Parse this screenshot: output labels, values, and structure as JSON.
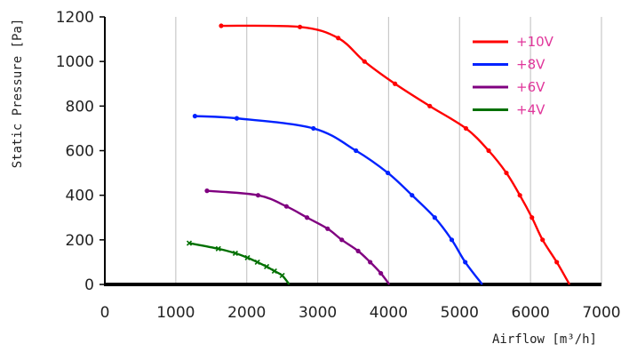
{
  "chart_data": {
    "type": "line",
    "title": "",
    "xlabel": "Airflow [m³/h]",
    "ylabel": "Static Pressure [Pa]",
    "xlim": [
      0,
      7000
    ],
    "ylim": [
      0,
      1200
    ],
    "x_ticks": [
      "0",
      "1000",
      "2000",
      "3000",
      "4000",
      "5000",
      "6000",
      "7000"
    ],
    "y_ticks": [
      "0",
      "200",
      "400",
      "600",
      "800",
      "1000",
      "1200"
    ],
    "grid": "vertical",
    "legend_position": "top-right",
    "series": [
      {
        "name": "+10V",
        "color": "#ff0000",
        "points": [
          [
            1640,
            1160
          ],
          [
            2750,
            1155
          ],
          [
            3290,
            1105
          ],
          [
            3660,
            1000
          ],
          [
            4090,
            900
          ],
          [
            4580,
            800
          ],
          [
            5090,
            700
          ],
          [
            5410,
            600
          ],
          [
            5660,
            500
          ],
          [
            5850,
            400
          ],
          [
            6020,
            300
          ],
          [
            6170,
            200
          ],
          [
            6370,
            100
          ],
          [
            6550,
            0
          ]
        ]
      },
      {
        "name": "+8V",
        "color": "#0022ff",
        "points": [
          [
            1270,
            755
          ],
          [
            1860,
            745
          ],
          [
            2940,
            700
          ],
          [
            3540,
            600
          ],
          [
            3990,
            500
          ],
          [
            4330,
            400
          ],
          [
            4650,
            300
          ],
          [
            4890,
            200
          ],
          [
            5080,
            100
          ],
          [
            5320,
            0
          ]
        ]
      },
      {
        "name": "+6V",
        "color": "#800080",
        "points": [
          [
            1440,
            420
          ],
          [
            2160,
            400
          ],
          [
            2560,
            350
          ],
          [
            2850,
            300
          ],
          [
            3140,
            250
          ],
          [
            3340,
            200
          ],
          [
            3570,
            150
          ],
          [
            3740,
            100
          ],
          [
            3890,
            50
          ],
          [
            4010,
            0
          ]
        ]
      },
      {
        "name": "+4V",
        "color": "#007000",
        "points": [
          [
            1190,
            185
          ],
          [
            1600,
            160
          ],
          [
            1840,
            140
          ],
          [
            2010,
            120
          ],
          [
            2150,
            100
          ],
          [
            2280,
            80
          ],
          [
            2390,
            60
          ],
          [
            2500,
            40
          ],
          [
            2600,
            0
          ]
        ]
      }
    ]
  }
}
